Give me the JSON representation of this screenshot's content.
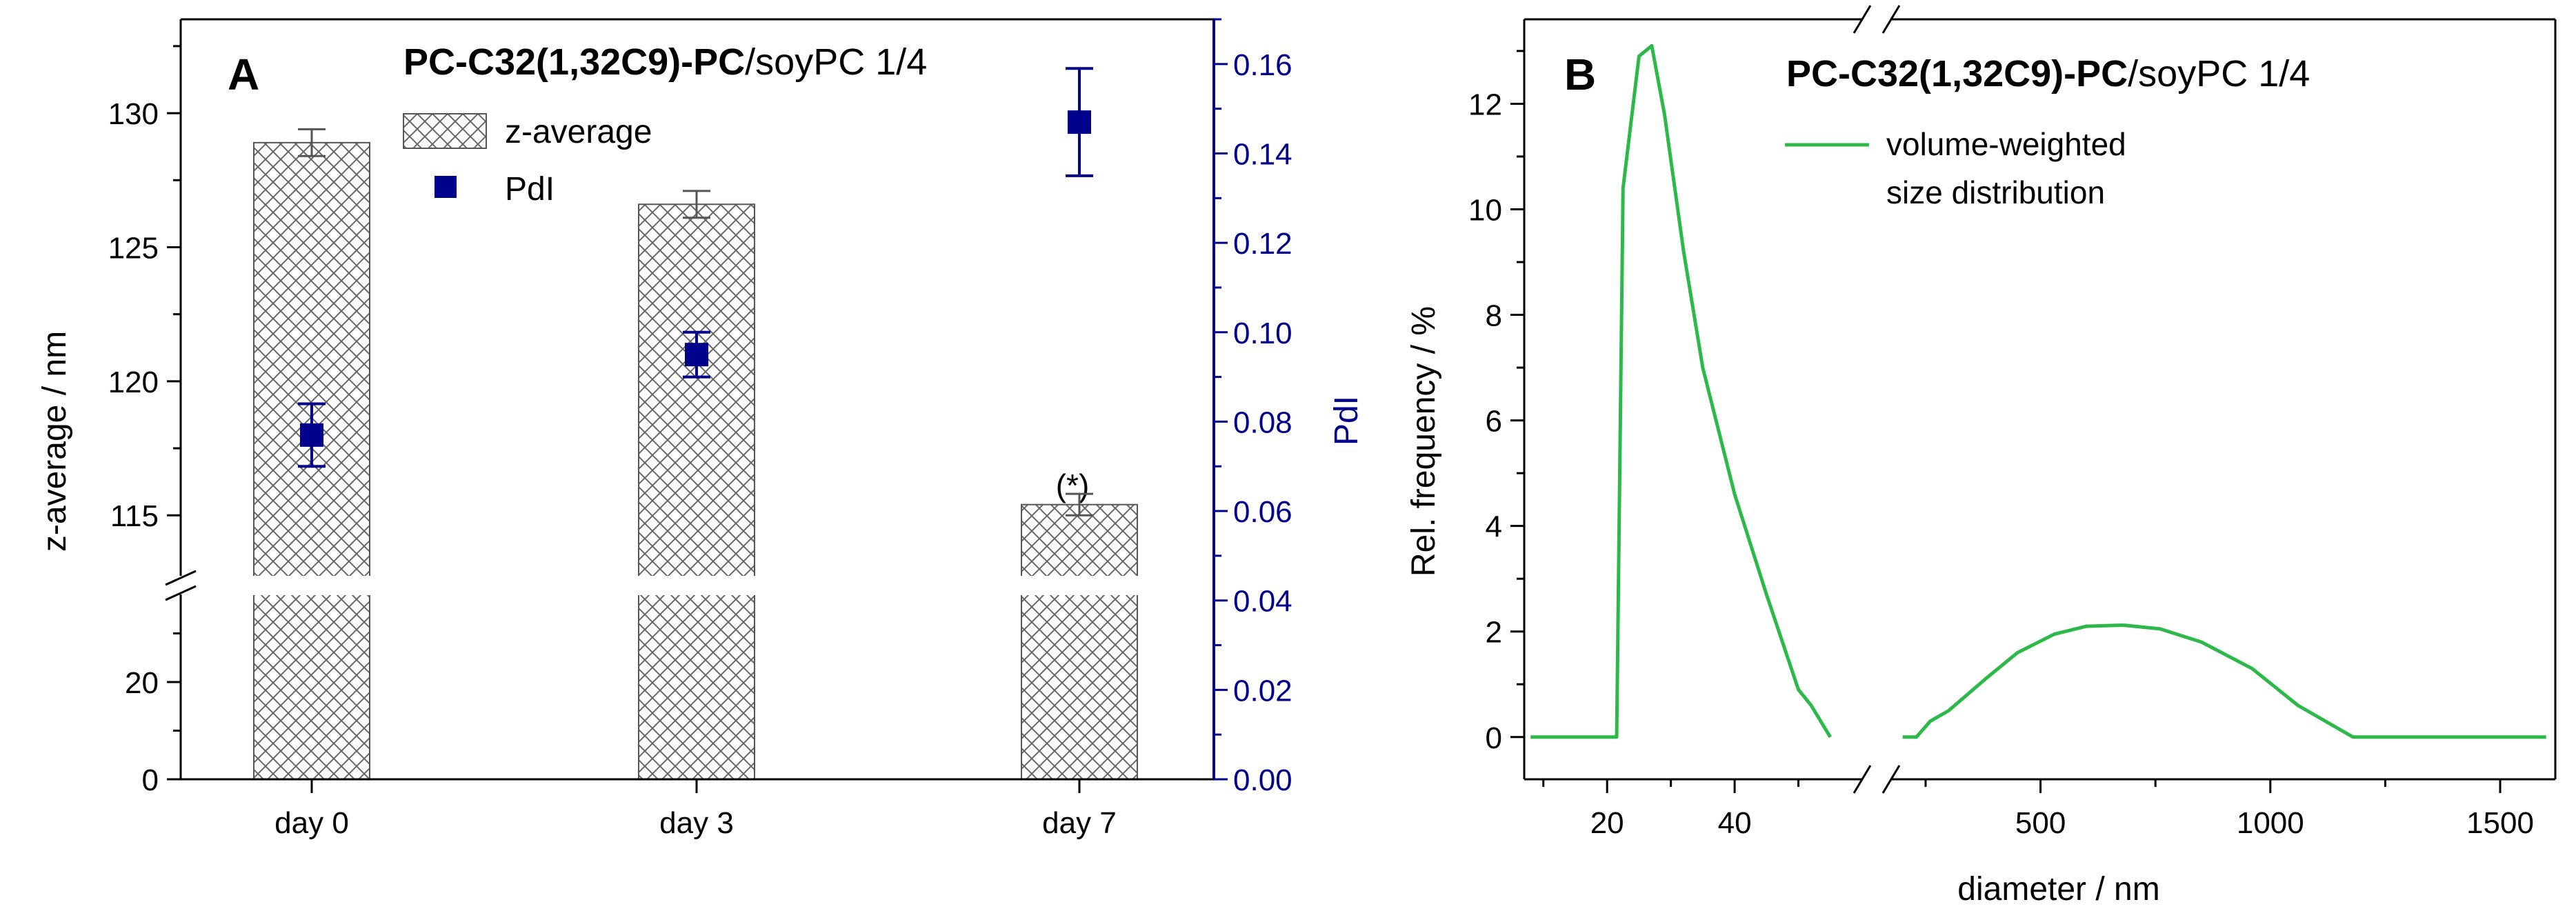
{
  "colors": {
    "axis": "#000000",
    "pdi": "#00008b",
    "bar_edge": "#555555",
    "green": "#2db84a",
    "err": "#555555"
  },
  "chart_data": [
    {
      "panel": "A",
      "type": "bar",
      "title_bold": "PC-C32(1,32C9)-PC",
      "title_rest": "/soyPC 1/4",
      "categories": [
        "day 0",
        "day 3",
        "day 7"
      ],
      "series": [
        {
          "name": "z-average",
          "axis": "left",
          "values": [
            128.9,
            126.6,
            115.4
          ],
          "errors": [
            0.5,
            0.5,
            0.4
          ]
        },
        {
          "name": "PdI",
          "axis": "right",
          "values": [
            0.077,
            0.095,
            0.147
          ],
          "errors": [
            0.007,
            0.005,
            0.012
          ]
        }
      ],
      "annotation": "(*)",
      "ylabel": "z-average / nm",
      "ylabel_right": "PdI",
      "y_lower": {
        "range": [
          0,
          38
        ],
        "ticks": [
          0,
          20
        ]
      },
      "y_upper": {
        "range": [
          113,
          133.5
        ],
        "ticks": [
          115,
          120,
          125,
          130
        ]
      },
      "y_right": {
        "range": [
          0,
          0.17
        ],
        "ticks": [
          "0.00",
          "0.02",
          "0.04",
          "0.06",
          "0.08",
          "0.10",
          "0.12",
          "0.14",
          "0.16"
        ]
      },
      "legend": [
        "z-average",
        "PdI"
      ]
    },
    {
      "panel": "B",
      "type": "line",
      "title_bold": "PC-C32(1,32C9)-PC",
      "title_rest": "/soyPC 1/4",
      "series": [
        {
          "name": "volume-weighted size distribution",
          "segment": "left",
          "x": [
            8,
            16,
            21.5,
            22.5,
            25,
            27,
            29,
            32,
            35,
            40,
            45,
            50,
            52,
            55
          ],
          "y": [
            0,
            0,
            0,
            10.4,
            12.9,
            13.1,
            11.8,
            9.2,
            7.0,
            4.6,
            2.7,
            0.9,
            0.6,
            0
          ]
        },
        {
          "name": "volume-weighted size distribution",
          "segment": "right",
          "x": [
            200,
            230,
            260,
            300,
            380,
            450,
            530,
            600,
            680,
            760,
            850,
            960,
            1060,
            1180,
            1600
          ],
          "y": [
            0,
            0,
            0.3,
            0.5,
            1.1,
            1.6,
            1.95,
            2.1,
            2.12,
            2.05,
            1.8,
            1.3,
            0.6,
            0,
            0
          ]
        }
      ],
      "legend_line1": "volume-weighted",
      "legend_line2": "size distribution",
      "xlabel": "diameter / nm",
      "ylabel": "Rel. frequency / %",
      "x_left": {
        "range": [
          7,
          60
        ],
        "ticks": [
          20,
          40
        ]
      },
      "x_right": {
        "range": [
          175,
          1620
        ],
        "ticks": [
          500,
          1000,
          1500
        ]
      },
      "ylim": [
        -0.8,
        13.6
      ],
      "y_ticks": [
        0,
        2,
        4,
        6,
        8,
        10,
        12
      ]
    }
  ]
}
